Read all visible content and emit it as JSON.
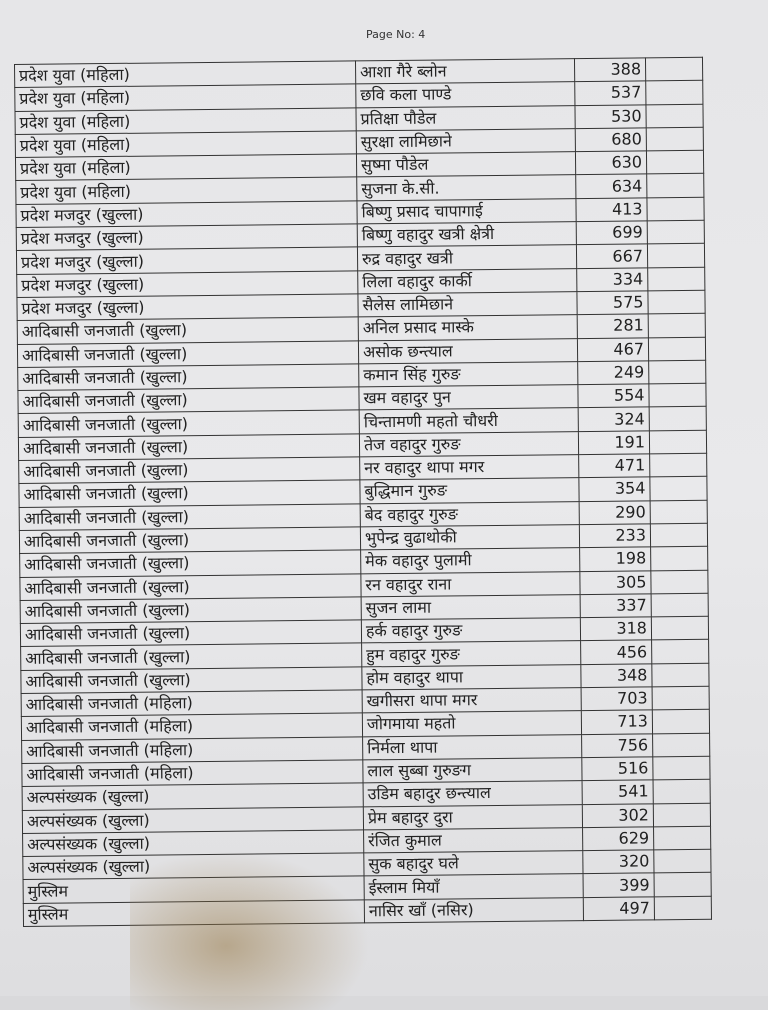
{
  "page_number_label": "Page No: 4",
  "rows": [
    {
      "category": "प्रदेश युवा (महिला)",
      "name": "आशा गैरे ब्लोन",
      "votes": "388"
    },
    {
      "category": "प्रदेश युवा (महिला)",
      "name": "छवि कला पाण्डे",
      "votes": "537"
    },
    {
      "category": "प्रदेश युवा (महिला)",
      "name": "प्रतिक्षा पौडेल",
      "votes": "530"
    },
    {
      "category": "प्रदेश युवा (महिला)",
      "name": "सुरक्षा लामिछाने",
      "votes": "680"
    },
    {
      "category": "प्रदेश युवा (महिला)",
      "name": "सुष्मा पौडेल",
      "votes": "630"
    },
    {
      "category": "प्रदेश युवा (महिला)",
      "name": "सुजना के.सी.",
      "votes": "634"
    },
    {
      "category": "प्रदेश मजदुर (खुल्ला)",
      "name": "बिष्णु प्रसाद चापागाई",
      "votes": "413"
    },
    {
      "category": "प्रदेश मजदुर (खुल्ला)",
      "name": "बिष्णु वहादुर खत्री क्षेत्री",
      "votes": "699"
    },
    {
      "category": "प्रदेश मजदुर (खुल्ला)",
      "name": "रुद्र वहादुर खत्री",
      "votes": "667"
    },
    {
      "category": "प्रदेश मजदुर (खुल्ला)",
      "name": "लिला वहादुर कार्की",
      "votes": "334"
    },
    {
      "category": "प्रदेश मजदुर (खुल्ला)",
      "name": "सैलेस लामिछाने",
      "votes": "575"
    },
    {
      "category": "आदिबासी जनजाती (खुल्ला)",
      "name": "अनिल प्रसाद मास्के",
      "votes": "281"
    },
    {
      "category": "आदिबासी जनजाती (खुल्ला)",
      "name": "असोक छन्त्याल",
      "votes": "467"
    },
    {
      "category": "आदिबासी जनजाती (खुल्ला)",
      "name": "कमान सिंह गुरुङ",
      "votes": "249"
    },
    {
      "category": "आदिबासी जनजाती (खुल्ला)",
      "name": "खम वहादुर पुन",
      "votes": "554"
    },
    {
      "category": "आदिबासी जनजाती (खुल्ला)",
      "name": "चिन्तामणी महतो चौधरी",
      "votes": "324"
    },
    {
      "category": "आदिबासी जनजाती (खुल्ला)",
      "name": "तेज वहादुर गुरुङ",
      "votes": "191"
    },
    {
      "category": "आदिबासी जनजाती (खुल्ला)",
      "name": "नर वहादुर थापा मगर",
      "votes": "471"
    },
    {
      "category": "आदिबासी जनजाती (खुल्ला)",
      "name": "बुद्धिमान गुरुङ",
      "votes": "354"
    },
    {
      "category": "आदिबासी जनजाती (खुल्ला)",
      "name": "बेद वहादुर गुरुङ",
      "votes": "290"
    },
    {
      "category": "आदिबासी जनजाती (खुल्ला)",
      "name": "भुपेन्द्र वुढाथोकी",
      "votes": "233"
    },
    {
      "category": "आदिबासी जनजाती (खुल्ला)",
      "name": "मेक वहादुर पुलामी",
      "votes": "198"
    },
    {
      "category": "आदिबासी जनजाती (खुल्ला)",
      "name": "रन वहादुर राना",
      "votes": "305"
    },
    {
      "category": "आदिबासी जनजाती (खुल्ला)",
      "name": "सुजन लामा",
      "votes": "337"
    },
    {
      "category": "आदिबासी जनजाती (खुल्ला)",
      "name": "हर्क वहादुर गुरुङ",
      "votes": "318"
    },
    {
      "category": "आदिबासी जनजाती (खुल्ला)",
      "name": "हुम वहादुर गुरुङ",
      "votes": "456"
    },
    {
      "category": "आदिबासी जनजाती (खुल्ला)",
      "name": "होम वहादुर थापा",
      "votes": "348"
    },
    {
      "category": "आदिबासी जनजाती (महिला)",
      "name": "खगीसरा थापा मगर",
      "votes": "703"
    },
    {
      "category": "आदिबासी जनजाती (महिला)",
      "name": "जोगमाया महतो",
      "votes": "713"
    },
    {
      "category": "आदिबासी जनजाती (महिला)",
      "name": "निर्मला थापा",
      "votes": "756"
    },
    {
      "category": "आदिबासी जनजाती (महिला)",
      "name": "लाल सुब्बा गुरुङग",
      "votes": "516"
    },
    {
      "category": "अल्पसंख्यक (खुल्ला)",
      "name": "उडिम बहादुर छन्त्याल",
      "votes": "541"
    },
    {
      "category": "अल्पसंख्यक (खुल्ला)",
      "name": "प्रेम बहादुर दुरा",
      "votes": "302"
    },
    {
      "category": "अल्पसंख्यक (खुल्ला)",
      "name": "रंजित कुमाल",
      "votes": "629"
    },
    {
      "category": "अल्पसंख्यक (खुल्ला)",
      "name": "सुक बहादुर घले",
      "votes": "320"
    },
    {
      "category": "मुस्लिम",
      "name": "ईस्लाम मियाँ",
      "votes": "399"
    },
    {
      "category": "मुस्लिम",
      "name": "नासिर खाँ (नसिर)",
      "votes": "497"
    }
  ]
}
